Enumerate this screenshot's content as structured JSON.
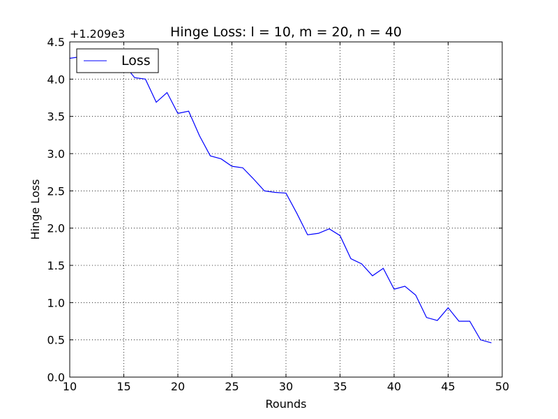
{
  "chart_data": {
    "type": "line",
    "title": "Hinge Loss: l = 10, m = 20, n = 40",
    "xlabel": "Rounds",
    "ylabel": "Hinge Loss",
    "y_offset_label": "+1.209e3",
    "xlim": [
      10,
      50
    ],
    "ylim": [
      0.0,
      4.5
    ],
    "xticks": [
      "10",
      "15",
      "20",
      "25",
      "30",
      "35",
      "40",
      "45",
      "50"
    ],
    "yticks": [
      "0.0",
      "0.5",
      "1.0",
      "1.5",
      "2.0",
      "2.5",
      "3.0",
      "3.5",
      "4.0",
      "4.5"
    ],
    "grid": true,
    "legend_position": "top-left",
    "series": [
      {
        "name": "Loss",
        "color": "#0000ff",
        "x": [
          10,
          11,
          12,
          13,
          14,
          15,
          16,
          17,
          18,
          19,
          20,
          21,
          22,
          23,
          24,
          25,
          26,
          27,
          28,
          29,
          30,
          31,
          32,
          33,
          34,
          35,
          36,
          37,
          38,
          39,
          40,
          41,
          42,
          43,
          44,
          45,
          46,
          47,
          48,
          49
        ],
        "y": [
          4.28,
          4.3,
          4.25,
          4.2,
          4.22,
          4.2,
          4.02,
          4.0,
          3.69,
          3.82,
          3.54,
          3.57,
          3.24,
          2.97,
          2.93,
          2.83,
          2.81,
          2.66,
          2.5,
          2.48,
          2.47,
          2.2,
          1.91,
          1.93,
          1.99,
          1.9,
          1.59,
          1.52,
          1.36,
          1.46,
          1.18,
          1.22,
          1.1,
          0.8,
          0.76,
          0.93,
          0.75,
          0.75,
          0.5,
          0.46
        ]
      }
    ]
  }
}
